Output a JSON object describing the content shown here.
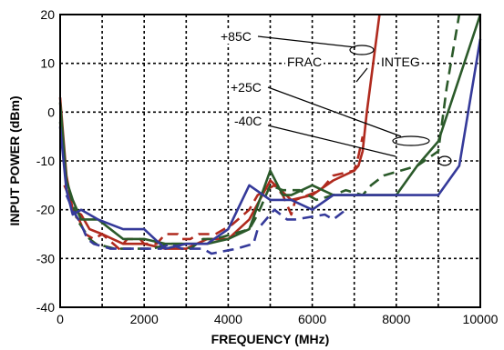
{
  "chart_data": {
    "type": "line",
    "xlabel": "FREQUENCY (MHz)",
    "ylabel": "INPUT POWER (dBm)",
    "xlim": [
      0,
      10000
    ],
    "ylim": [
      -40,
      20
    ],
    "xticks": [
      "0",
      "2000",
      "4000",
      "6000",
      "8000",
      "10000"
    ],
    "yticks": [
      "20",
      "10",
      "0",
      "-10",
      "-20",
      "-30",
      "-40"
    ],
    "grid": true,
    "annotations": [
      {
        "id": "p85",
        "text": "+85C"
      },
      {
        "id": "frac",
        "text": "FRAC"
      },
      {
        "id": "integ",
        "text": "INTEG"
      },
      {
        "id": "p25",
        "text": "+25C"
      },
      {
        "id": "m40",
        "text": "-40C"
      }
    ],
    "series": [
      {
        "key": "s85i",
        "color": "#b02a1e",
        "style": "solid",
        "x": [
          0,
          150,
          300,
          500,
          700,
          1000,
          1500,
          2000,
          2500,
          3000,
          3500,
          4000,
          4500,
          5000,
          5500,
          6000,
          6500,
          7000,
          7100,
          7200,
          7300,
          7600
        ],
        "y": [
          3,
          -13,
          -20,
          -21,
          -24,
          -25,
          -27,
          -27,
          -28,
          -28,
          -26,
          -26,
          -22,
          -14,
          -18,
          -17,
          -14,
          -12,
          -11,
          -8,
          0,
          20
        ]
      },
      {
        "key": "s85f",
        "color": "#b02a1e",
        "style": "dashed",
        "x": [
          100,
          200,
          300,
          450,
          600,
          800,
          1000,
          1400,
          1600,
          1900,
          2000,
          2300,
          2500,
          2800,
          2900,
          3100,
          3300,
          3700,
          3900,
          4100,
          4500,
          4700,
          5100,
          5300,
          5500,
          5600,
          6200,
          6500,
          7000,
          7100,
          7200
        ],
        "y": [
          -15,
          -17,
          -21,
          -22,
          -25,
          -26,
          -25,
          -28,
          -26,
          -26,
          -27,
          -27,
          -25,
          -25,
          -26,
          -26,
          -25,
          -25,
          -24,
          -23,
          -20,
          -17,
          -15,
          -17,
          -21,
          -18,
          -16,
          -13,
          -12,
          -9,
          -5
        ]
      },
      {
        "key": "s25i",
        "color": "#2b5a2a",
        "style": "solid",
        "x": [
          0,
          150,
          300,
          500,
          900,
          1500,
          2000,
          2500,
          3000,
          3500,
          4000,
          4500,
          5000,
          5300,
          5500,
          6000,
          6500,
          7000,
          7500,
          8000,
          8500,
          9000,
          10000
        ],
        "y": [
          2,
          -14,
          -18,
          -22,
          -22,
          -26,
          -26,
          -27,
          -27,
          -27,
          -26,
          -24,
          -12,
          -17,
          -17,
          -15,
          -17,
          -17,
          -17,
          -17,
          -11,
          -6,
          20
        ]
      },
      {
        "key": "s25f",
        "color": "#2b5a2a",
        "style": "dashed",
        "x": [
          0,
          150,
          250,
          400,
          550,
          700,
          850,
          1300,
          1700,
          2200,
          2600,
          2900,
          3100,
          3400,
          3700,
          4100,
          4500,
          4700,
          5000,
          5300,
          5700,
          6100,
          6500,
          6800,
          7200,
          7400,
          7700,
          8100,
          8500,
          9000,
          9200,
          9500
        ],
        "y": [
          -2,
          -14,
          -17,
          -22,
          -24,
          -26,
          -27,
          -28,
          -28,
          -28,
          -27,
          -27,
          -28,
          -26,
          -26,
          -25,
          -24,
          -21,
          -15,
          -16,
          -16,
          -18,
          -17,
          -16,
          -17,
          -15,
          -13,
          -12,
          -11,
          -8,
          5,
          20
        ]
      },
      {
        "key": "sm40i",
        "color": "#353a9a",
        "style": "solid",
        "x": [
          0,
          150,
          300,
          500,
          900,
          1500,
          2000,
          2500,
          3000,
          3500,
          4000,
          4500,
          5000,
          5500,
          6000,
          6500,
          7000,
          7500,
          8000,
          8500,
          8700,
          9000,
          9500,
          10000
        ],
        "y": [
          -3,
          -16,
          -21,
          -20,
          -22,
          -24,
          -24,
          -28,
          -27,
          -27,
          -24,
          -15,
          -18,
          -18,
          -20,
          -17,
          -17,
          -17,
          -17,
          -17,
          -17,
          -17,
          -11,
          15
        ]
      },
      {
        "key": "sm40f",
        "color": "#353a9a",
        "style": "dashed",
        "x": [
          150,
          300,
          500,
          650,
          800,
          1200,
          2000,
          2400,
          2600,
          2900,
          3000,
          3400,
          3600,
          4200,
          4600,
          4700,
          5100,
          5400,
          5600,
          6300,
          6500,
          6800
        ],
        "y": [
          -17,
          -20,
          -23,
          -26,
          -27,
          -28,
          -28,
          -28,
          -27,
          -28,
          -28,
          -28,
          -29,
          -28,
          -27,
          -24,
          -20,
          -22,
          -22,
          -21,
          -22,
          -20
        ]
      }
    ]
  }
}
